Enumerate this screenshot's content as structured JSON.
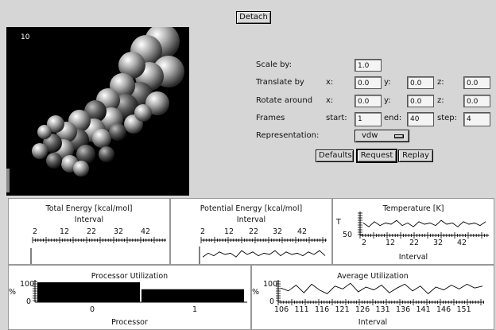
{
  "toolbar": {
    "detach_label": "Detach"
  },
  "viewer": {
    "frame": "10"
  },
  "controls": {
    "scale_label": "Scale by:",
    "scale_value": "1.0",
    "translate_label": "Translate by",
    "rotate_label": "Rotate around",
    "x_label": "x:",
    "y_label": "y:",
    "z_label": "z:",
    "translate": {
      "x": "0.0",
      "y": "0.0",
      "z": "0.0"
    },
    "rotate": {
      "x": "0.0",
      "y": "0.0",
      "z": "0.0"
    },
    "frames_label": "Frames",
    "start_label": "start:",
    "end_label": "end:",
    "step_label": "step:",
    "frames": {
      "start": "1",
      "end": "40",
      "step": "4"
    },
    "representation_label": "Representation:",
    "representation_value": "vdw"
  },
  "actions": {
    "defaults": "Defaults",
    "request": "Request",
    "replay": "Replay"
  },
  "panels": {
    "total_energy": {
      "title": "Total Energy [kcal/mol]",
      "xlabel": "Interval",
      "ticks": [
        "2",
        "12",
        "22",
        "32",
        "42"
      ]
    },
    "potential_energy": {
      "title": "Potential Energy [kcal/mol]",
      "xlabel": "Interval",
      "ticks": [
        "2",
        "12",
        "22",
        "32",
        "42"
      ]
    },
    "temperature": {
      "title": "Temperature [K]",
      "xlabel": "Interval",
      "ylabel": "T",
      "ytick": "50",
      "ticks": [
        "2",
        "12",
        "22",
        "32",
        "42"
      ]
    },
    "processor_utilization": {
      "title": "Processor Utilization",
      "xlabel": "Processor",
      "ylabel": "%",
      "ytick_top": "100",
      "ytick_bottom": "0",
      "ticks": [
        "0",
        "1"
      ]
    },
    "average_utilization": {
      "title": "Average Utilization",
      "xlabel": "Interval",
      "ylabel": "%",
      "ytick_top": "100",
      "ytick_bottom": "0",
      "ticks": [
        "106",
        "111",
        "116",
        "121",
        "126",
        "131",
        "136",
        "141",
        "146",
        "151"
      ]
    }
  },
  "chart_data": [
    {
      "type": "line",
      "title": "Potential Energy [kcal/mol]",
      "xlabel": "Interval",
      "x": [
        2,
        4,
        6,
        8,
        10,
        12,
        14,
        16,
        18,
        20,
        22,
        24,
        26,
        28,
        30,
        32,
        34,
        36,
        38,
        40,
        42,
        44,
        46
      ],
      "values": [
        0.3,
        0.6,
        0.4,
        0.7,
        0.5,
        0.6,
        0.3,
        0.8,
        0.5,
        0.7,
        0.4,
        0.6,
        0.5,
        0.8,
        0.4,
        0.7,
        0.5,
        0.6,
        0.4,
        0.7,
        0.5,
        0.8,
        0.4
      ]
    },
    {
      "type": "line",
      "title": "Temperature [K]",
      "xlabel": "Interval",
      "ylabel": "T",
      "x": [
        2,
        4,
        6,
        8,
        10,
        12,
        14,
        16,
        18,
        20,
        22,
        24,
        26,
        28,
        30,
        32,
        34,
        36,
        38,
        40,
        42,
        44,
        46
      ],
      "values": [
        0.6,
        0.3,
        0.7,
        0.4,
        0.6,
        0.5,
        0.8,
        0.4,
        0.6,
        0.3,
        0.7,
        0.5,
        0.6,
        0.4,
        0.8,
        0.5,
        0.6,
        0.3,
        0.7,
        0.5,
        0.6,
        0.4,
        0.7
      ]
    },
    {
      "type": "bar",
      "title": "Processor Utilization",
      "xlabel": "Processor",
      "ylabel": "%",
      "categories": [
        "0",
        "1"
      ],
      "values": [
        100,
        65
      ],
      "ylim": [
        0,
        100
      ]
    },
    {
      "type": "line",
      "title": "Average Utilization",
      "xlabel": "Interval",
      "ylabel": "%",
      "ylim": [
        0,
        100
      ],
      "x": [
        103,
        105,
        107,
        109,
        111,
        113,
        115,
        117,
        119,
        121,
        123,
        125,
        127,
        129,
        131,
        133,
        135,
        137,
        139,
        141,
        143,
        145,
        147,
        149,
        151,
        153,
        155
      ],
      "values": [
        70,
        55,
        85,
        45,
        90,
        60,
        40,
        80,
        65,
        95,
        50,
        75,
        60,
        85,
        45,
        70,
        90,
        55,
        80,
        40,
        75,
        60,
        85,
        65,
        90,
        70,
        80
      ]
    }
  ]
}
